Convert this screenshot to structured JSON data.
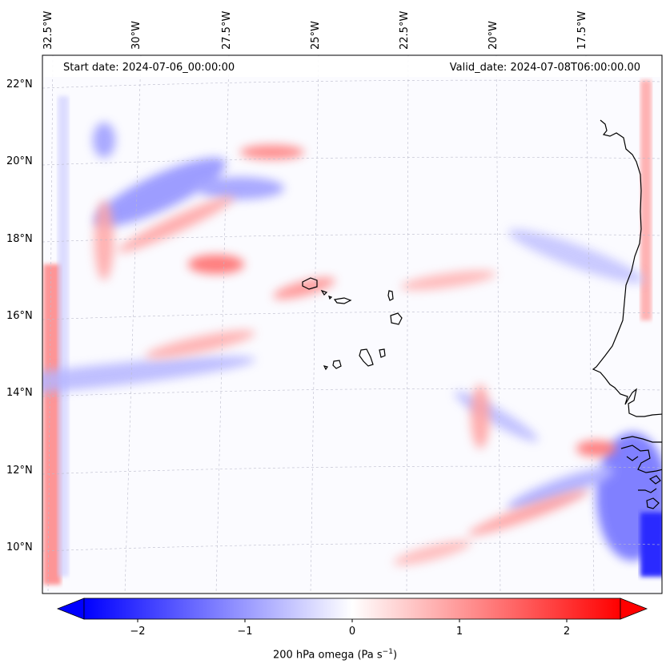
{
  "header": {
    "start_date": "Start date: 2024-07-06_00:00:00",
    "valid_date": "Valid_date: 2024-07-08T06:00:00.00"
  },
  "axes": {
    "lon_labels": [
      "32.5°W",
      "30°W",
      "27.5°W",
      "25°W",
      "22.5°W",
      "20°W",
      "17.5°W"
    ],
    "lat_labels": [
      "22°N",
      "20°N",
      "18°N",
      "16°N",
      "14°N",
      "12°N",
      "10°N"
    ],
    "extent": {
      "lon_min": -33.0,
      "lon_max": -15.6,
      "lat_min": 8.8,
      "lat_max": 22.8
    }
  },
  "colorbar": {
    "tick_labels": [
      "−2",
      "−1",
      "0",
      "1",
      "2"
    ],
    "tick_values": [
      -2,
      -1,
      0,
      1,
      2
    ],
    "range": [
      -2.5,
      2.5
    ],
    "label": "200 hPa omega (Pa s",
    "label_exp": "−1",
    "label_end": ")",
    "colors": {
      "neg": "#0000ff",
      "zero": "#ffffff",
      "pos": "#ff0000"
    }
  },
  "colors": {
    "coastline": "#000000",
    "grid": "#bbbbcc"
  }
}
